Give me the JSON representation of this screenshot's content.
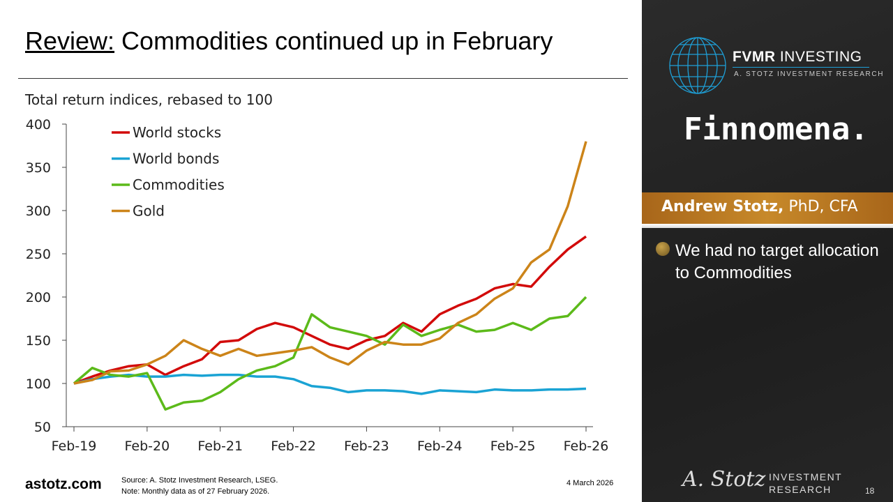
{
  "header": {
    "title_underlined": "Review:",
    "title_rest": " Commodities continued up in February"
  },
  "footer": {
    "site": "astotz.com",
    "source": "Source: A. Stotz Investment Research, LSEG.",
    "note": "Note: Monthly data as of 27 February 2026.",
    "date": "4 March 2026",
    "page": "18"
  },
  "sidebar": {
    "brand": "FVMR",
    "brand2": " INVESTING",
    "brand_sub": "A. STOTZ INVESTMENT RESEARCH",
    "partner": "Finnomena.",
    "presenter_name": "Andrew Stotz,",
    "presenter_cred": " PhD, CFA",
    "bullet": "We had no target allocation to Commodities",
    "logo_sig": "A. Stotz",
    "logo_text1": "INVESTMENT",
    "logo_text2": "RESEARCH"
  },
  "chart_data": {
    "type": "line",
    "title": "Total return indices, rebased to 100",
    "xlabel": "",
    "ylabel": "",
    "ylim": [
      50,
      400
    ],
    "yticks": [
      50,
      100,
      150,
      200,
      250,
      300,
      350,
      400
    ],
    "xticks": [
      "Feb-19",
      "Feb-20",
      "Feb-21",
      "Feb-22",
      "Feb-23",
      "Feb-24",
      "Feb-25",
      "Feb-26"
    ],
    "x_unit": "quarters since Feb-19",
    "x": [
      0,
      1,
      2,
      3,
      4,
      5,
      6,
      7,
      8,
      9,
      10,
      11,
      12,
      13,
      14,
      15,
      16,
      17,
      18,
      19,
      20,
      21,
      22,
      23,
      24,
      25,
      26,
      27,
      28
    ],
    "legend": "top-left",
    "series": [
      {
        "name": "World stocks",
        "color": "#d20a0a",
        "values": [
          100,
          108,
          115,
          120,
          122,
          110,
          120,
          128,
          148,
          150,
          163,
          170,
          165,
          155,
          145,
          140,
          150,
          155,
          170,
          160,
          180,
          190,
          198,
          210,
          215,
          212,
          235,
          255,
          270
        ]
      },
      {
        "name": "World bonds",
        "color": "#1aa3d4",
        "values": [
          100,
          105,
          108,
          110,
          108,
          108,
          110,
          109,
          110,
          110,
          108,
          108,
          105,
          97,
          95,
          90,
          92,
          92,
          91,
          88,
          92,
          91,
          90,
          93,
          92,
          92,
          93,
          93,
          94
        ]
      },
      {
        "name": "Commodities",
        "color": "#5cba1a",
        "values": [
          100,
          118,
          110,
          108,
          112,
          70,
          78,
          80,
          90,
          105,
          115,
          120,
          130,
          180,
          165,
          160,
          155,
          145,
          168,
          155,
          162,
          168,
          160,
          162,
          170,
          162,
          175,
          178,
          200
        ]
      },
      {
        "name": "Gold",
        "color": "#cc8419",
        "values": [
          100,
          104,
          114,
          115,
          122,
          132,
          150,
          140,
          132,
          140,
          132,
          135,
          138,
          142,
          130,
          122,
          138,
          148,
          145,
          145,
          152,
          170,
          180,
          198,
          210,
          240,
          255,
          305,
          380
        ]
      }
    ]
  }
}
